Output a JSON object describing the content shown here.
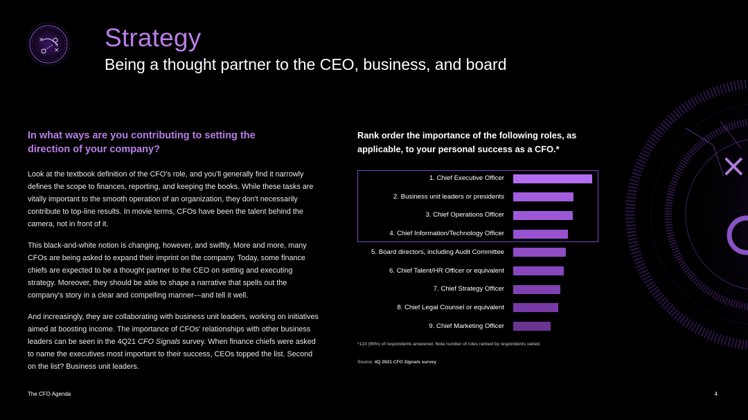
{
  "header": {
    "title": "Strategy",
    "subtitle": "Being a thought partner to the CEO, business, and board"
  },
  "left": {
    "question": "In what ways are you contributing to setting the direction of your company?",
    "paragraphs": [
      "Look at the textbook definition of the CFO's role, and you'll generally find it narrowly defines the scope to finances, reporting, and keeping the books. While these tasks are vitally important to the smooth operation of an organization, they don't necessarily contribute to top-line results. In movie terms, CFOs have been the talent behind the camera, not in front of it.",
      "This black-and-white notion is changing, however, and swiftly. More and more, many CFOs are being asked to expand their imprint on the company. Today, some finance chiefs are expected to be a thought partner to the CEO on setting and executing strategy. Moreover, they should be able to shape a narrative that spells out the company's story in a clear and compelling manner—and tell it well.",
      {
        "before": "And increasingly, they are collaborating with business unit leaders, working on initiatives aimed at boosting income. The importance of CFOs' relationships with other business leaders can be seen in the 4Q21 ",
        "italic": "CFO Signals",
        "after": " survey. When finance chiefs were asked to name the executives most important to their success, CEOs topped the list. Second on the list? Business unit leaders."
      }
    ]
  },
  "chart_data": {
    "type": "bar",
    "orientation": "horizontal",
    "title": "Rank order the importance of the following roles, as applicable, to your personal success as a CFO.*",
    "categories": [
      "1. Chief Executive Officer",
      "2. Business unit leaders or presidents",
      "3. Chief Operations Officer",
      "4. Chief Information/Technology Officer",
      "5. Board directors, including Audit Committee",
      "6. Chief Talent/HR Officer or equivalent",
      "7. Chief Strategy Officer",
      "8. Chief Legal Counsel or equivalent",
      "9. Chief Marketing Officer"
    ],
    "values": [
      100,
      76,
      75,
      69,
      67,
      64,
      60,
      57,
      47
    ],
    "highlighted_top": 4,
    "colors": {
      "bars": [
        "#b36ef0",
        "#a35ee0",
        "#9d58d8",
        "#9652d0",
        "#8e4cc6",
        "#8746bc",
        "#7f40b1",
        "#773aa6",
        "#6a3493"
      ],
      "highlight_border": "#7a42c4"
    },
    "footnote": "*123 (95%) of respondents answered. Note number of roles ranked by respondents varied.",
    "source": {
      "prefix": "Source: ",
      "bold": "4Q 2021 ",
      "italic": "CFO Signals",
      "suffix": " survey"
    }
  },
  "footer": {
    "left": "The CFO Agenda",
    "page": "4"
  },
  "theme": {
    "accent": "#b87fe6",
    "background": "#000000"
  }
}
